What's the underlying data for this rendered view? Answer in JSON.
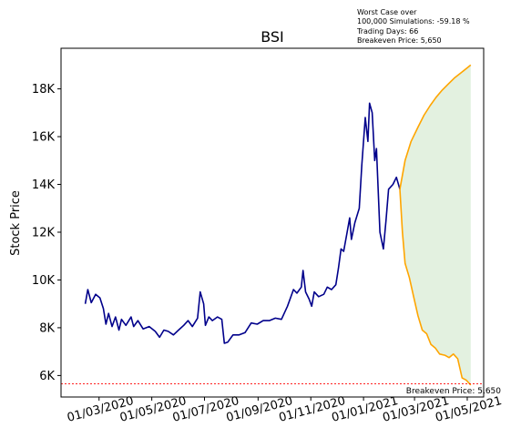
{
  "chart_data": {
    "type": "line",
    "title": "BSI",
    "xlabel": "",
    "ylabel": "Stock Price",
    "x_ticks": [
      "01/03/2020",
      "01/05/2020",
      "01/07/2020",
      "01/09/2020",
      "01/11/2020",
      "01/01/2021",
      "01/03/2021",
      "01/05/2021"
    ],
    "y_ticks": [
      "6K",
      "8K",
      "10K",
      "12K",
      "14K",
      "16K",
      "18K"
    ],
    "ylim": [
      5100,
      19700
    ],
    "xlim": [
      "2020-01-17",
      "2021-05-20"
    ],
    "annotation_lines": [
      "Worst Case over",
      "100,000 Simulations: -59.18 %",
      "Trading Days: 66",
      "Breakeven Price: 5,650"
    ],
    "breakeven_label": "Breakeven Price: 5,650",
    "breakeven": 5650,
    "series": [
      {
        "color": "#00008b",
        "points": [
          [
            "2020-02-14",
            9000
          ],
          [
            "2020-02-17",
            9600
          ],
          [
            "2020-02-21",
            9050
          ],
          [
            "2020-02-26",
            9400
          ],
          [
            "2020-03-02",
            9250
          ],
          [
            "2020-03-06",
            8800
          ],
          [
            "2020-03-09",
            8150
          ],
          [
            "2020-03-12",
            8600
          ],
          [
            "2020-03-16",
            8050
          ],
          [
            "2020-03-20",
            8450
          ],
          [
            "2020-03-24",
            7900
          ],
          [
            "2020-03-27",
            8350
          ],
          [
            "2020-04-01",
            8100
          ],
          [
            "2020-04-07",
            8450
          ],
          [
            "2020-04-10",
            8050
          ],
          [
            "2020-04-15",
            8300
          ],
          [
            "2020-04-21",
            7950
          ],
          [
            "2020-04-28",
            8050
          ],
          [
            "2020-05-05",
            7850
          ],
          [
            "2020-05-10",
            7600
          ],
          [
            "2020-05-15",
            7900
          ],
          [
            "2020-05-20",
            7850
          ],
          [
            "2020-05-26",
            7700
          ],
          [
            "2020-06-01",
            7900
          ],
          [
            "2020-06-07",
            8100
          ],
          [
            "2020-06-12",
            8300
          ],
          [
            "2020-06-17",
            8050
          ],
          [
            "2020-06-23",
            8400
          ],
          [
            "2020-06-26",
            9500
          ],
          [
            "2020-06-30",
            9000
          ],
          [
            "2020-07-02",
            8100
          ],
          [
            "2020-07-06",
            8450
          ],
          [
            "2020-07-10",
            8300
          ],
          [
            "2020-07-16",
            8450
          ],
          [
            "2020-07-21",
            8350
          ],
          [
            "2020-07-24",
            7350
          ],
          [
            "2020-07-28",
            7400
          ],
          [
            "2020-08-03",
            7700
          ],
          [
            "2020-08-10",
            7700
          ],
          [
            "2020-08-17",
            7800
          ],
          [
            "2020-08-24",
            8200
          ],
          [
            "2020-08-31",
            8150
          ],
          [
            "2020-09-07",
            8300
          ],
          [
            "2020-09-14",
            8300
          ],
          [
            "2020-09-21",
            8400
          ],
          [
            "2020-09-28",
            8350
          ],
          [
            "2020-10-05",
            8900
          ],
          [
            "2020-10-12",
            9600
          ],
          [
            "2020-10-16",
            9450
          ],
          [
            "2020-10-21",
            9700
          ],
          [
            "2020-10-23",
            10400
          ],
          [
            "2020-10-26",
            9500
          ],
          [
            "2020-10-30",
            9200
          ],
          [
            "2020-11-02",
            8900
          ],
          [
            "2020-11-05",
            9500
          ],
          [
            "2020-11-10",
            9300
          ],
          [
            "2020-11-16",
            9400
          ],
          [
            "2020-11-20",
            9700
          ],
          [
            "2020-11-25",
            9600
          ],
          [
            "2020-11-30",
            9800
          ],
          [
            "2020-12-03",
            10500
          ],
          [
            "2020-12-06",
            11300
          ],
          [
            "2020-12-09",
            11200
          ],
          [
            "2020-12-13",
            12000
          ],
          [
            "2020-12-16",
            12600
          ],
          [
            "2020-12-18",
            11700
          ],
          [
            "2020-12-22",
            12400
          ],
          [
            "2020-12-27",
            13000
          ],
          [
            "2020-12-30",
            14800
          ],
          [
            "2021-01-03",
            16800
          ],
          [
            "2021-01-06",
            15800
          ],
          [
            "2021-01-08",
            17400
          ],
          [
            "2021-01-11",
            17000
          ],
          [
            "2021-01-14",
            15000
          ],
          [
            "2021-01-16",
            15500
          ],
          [
            "2021-01-20",
            12000
          ],
          [
            "2021-01-24",
            11300
          ],
          [
            "2021-01-27",
            12500
          ],
          [
            "2021-01-30",
            13800
          ],
          [
            "2021-02-04",
            14000
          ],
          [
            "2021-02-08",
            14300
          ],
          [
            "2021-02-12",
            13800
          ]
        ]
      },
      {
        "color": "#ffa500",
        "points": [
          [
            "2021-02-12",
            13800
          ],
          [
            "2021-02-18",
            15000
          ],
          [
            "2021-02-25",
            15800
          ],
          [
            "2021-03-05",
            16400
          ],
          [
            "2021-03-12",
            16900
          ],
          [
            "2021-03-19",
            17300
          ],
          [
            "2021-03-26",
            17650
          ],
          [
            "2021-04-02",
            17950
          ],
          [
            "2021-04-09",
            18200
          ],
          [
            "2021-04-16",
            18450
          ],
          [
            "2021-04-23",
            18650
          ],
          [
            "2021-04-30",
            18850
          ],
          [
            "2021-05-05",
            19000
          ]
        ]
      },
      {
        "color": "#ffa500",
        "points": [
          [
            "2021-02-12",
            13800
          ],
          [
            "2021-02-15",
            12000
          ],
          [
            "2021-02-18",
            10700
          ],
          [
            "2021-02-23",
            10100
          ],
          [
            "2021-02-28",
            9300
          ],
          [
            "2021-03-05",
            8500
          ],
          [
            "2021-03-10",
            7900
          ],
          [
            "2021-03-15",
            7750
          ],
          [
            "2021-03-20",
            7300
          ],
          [
            "2021-03-25",
            7150
          ],
          [
            "2021-03-30",
            6900
          ],
          [
            "2021-04-05",
            6850
          ],
          [
            "2021-04-10",
            6750
          ],
          [
            "2021-04-15",
            6900
          ],
          [
            "2021-04-20",
            6700
          ],
          [
            "2021-04-25",
            5900
          ],
          [
            "2021-04-30",
            5800
          ],
          [
            "2021-05-05",
            5600
          ]
        ]
      }
    ],
    "fill_color": "#e3f1e0",
    "breakeven_color": "#ff0000",
    "grid": false,
    "legend": "none"
  }
}
